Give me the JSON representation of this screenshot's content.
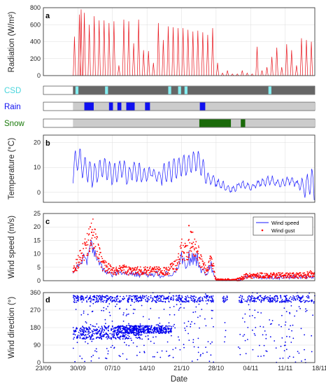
{
  "colors": {
    "radiation": "#e8141c",
    "temperature": "#1a1aff",
    "wind_speed": "#1a1aff",
    "wind_gust": "#ff0000",
    "wind_direction": "#0000ee",
    "bar_dark": "#666666",
    "bar_light": "#cccccc",
    "csd": "#86f0f3",
    "rain": "#1010f0",
    "snow": "#1a6a0a",
    "csd_label": "#4ad5dc",
    "rain_label": "#1010f0",
    "snow_label": "#1a7a0a"
  },
  "chart_data": [
    {
      "type": "line",
      "panel": "a",
      "ylabel": "Radiation (W/m²)",
      "ylim": [
        0,
        800
      ],
      "yticks": [
        0,
        200,
        400,
        600,
        800
      ],
      "xlim": [
        0,
        55
      ],
      "grid": true,
      "days": [
        {
          "day": 6.3,
          "peak": 460
        },
        {
          "day": 7.3,
          "peak": 720
        },
        {
          "day": 7.65,
          "peak": 780
        },
        {
          "day": 8.3,
          "peak": 740
        },
        {
          "day": 9.3,
          "peak": 600
        },
        {
          "day": 10.3,
          "peak": 700
        },
        {
          "day": 11.3,
          "peak": 650
        },
        {
          "day": 12.3,
          "peak": 650
        },
        {
          "day": 13.3,
          "peak": 620
        },
        {
          "day": 14.3,
          "peak": 640
        },
        {
          "day": 15.3,
          "peak": 120
        },
        {
          "day": 16.3,
          "peak": 660
        },
        {
          "day": 17.3,
          "peak": 640
        },
        {
          "day": 18.3,
          "peak": 380
        },
        {
          "day": 19.3,
          "peak": 660
        },
        {
          "day": 20.3,
          "peak": 300
        },
        {
          "day": 21.3,
          "peak": 290
        },
        {
          "day": 22.3,
          "peak": 150
        },
        {
          "day": 23.3,
          "peak": 620
        },
        {
          "day": 24.3,
          "peak": 420
        },
        {
          "day": 25.3,
          "peak": 580
        },
        {
          "day": 26.3,
          "peak": 570
        },
        {
          "day": 27.3,
          "peak": 560
        },
        {
          "day": 28.3,
          "peak": 560
        },
        {
          "day": 29.3,
          "peak": 540
        },
        {
          "day": 30.3,
          "peak": 520
        },
        {
          "day": 31.3,
          "peak": 530
        },
        {
          "day": 32.3,
          "peak": 510
        },
        {
          "day": 33.3,
          "peak": 480
        },
        {
          "day": 34.3,
          "peak": 560
        },
        {
          "day": 35.3,
          "peak": 150
        },
        {
          "day": 36.3,
          "peak": 30
        },
        {
          "day": 37.3,
          "peak": 60
        },
        {
          "day": 38.3,
          "peak": 20
        },
        {
          "day": 39.3,
          "peak": 20
        },
        {
          "day": 40.3,
          "peak": 60
        },
        {
          "day": 41.3,
          "peak": 30
        },
        {
          "day": 42.3,
          "peak": 20
        },
        {
          "day": 43.3,
          "peak": 340
        },
        {
          "day": 44.3,
          "peak": 60
        },
        {
          "day": 45.3,
          "peak": 100
        },
        {
          "day": 46.3,
          "peak": 220
        },
        {
          "day": 47.3,
          "peak": 330
        },
        {
          "day": 48.3,
          "peak": 100
        },
        {
          "day": 49.3,
          "peak": 370
        },
        {
          "day": 50.3,
          "peak": 300
        },
        {
          "day": 51.3,
          "peak": 120
        },
        {
          "day": 52.3,
          "peak": 440
        },
        {
          "day": 53.3,
          "peak": 420
        },
        {
          "day": 54.3,
          "peak": 400
        }
      ]
    },
    {
      "type": "bar",
      "panel": "CSD",
      "label": "CSD",
      "xlim": [
        0,
        55
      ],
      "data_range": [
        6,
        55
      ],
      "events": [
        [
          6.5,
          7.1
        ],
        [
          12.5,
          13.1
        ],
        [
          25.3,
          25.9
        ],
        [
          27.3,
          27.9
        ],
        [
          28.6,
          29.2
        ],
        [
          45.6,
          46.2
        ]
      ]
    },
    {
      "type": "bar",
      "panel": "Rain",
      "label": "Rain",
      "xlim": [
        0,
        55
      ],
      "data_range": [
        6,
        55
      ],
      "events": [
        [
          8.3,
          10.2
        ],
        [
          13.3,
          14.1
        ],
        [
          15.0,
          15.8
        ],
        [
          16.8,
          18.5
        ],
        [
          20.6,
          21.6
        ],
        [
          31.7,
          32.8
        ]
      ]
    },
    {
      "type": "bar",
      "panel": "Snow",
      "label": "Snow",
      "xlim": [
        0,
        55
      ],
      "data_range": [
        6,
        55
      ],
      "events": [
        [
          31.6,
          38.0
        ],
        [
          40.0,
          40.9
        ]
      ]
    },
    {
      "type": "line",
      "panel": "b",
      "ylabel": "Temperature (°C)",
      "ylim": [
        -4,
        23
      ],
      "yticks": [
        0,
        10,
        20
      ],
      "xlim": [
        0,
        55
      ],
      "grid": true,
      "series": [
        {
          "name": "Temperature",
          "x": [
            6,
            7,
            8,
            9,
            10,
            11,
            12,
            13,
            14,
            15,
            16,
            17,
            18,
            19,
            20,
            21,
            22,
            23,
            24,
            25,
            26,
            27,
            28,
            29,
            30,
            31,
            32,
            33,
            34,
            35,
            36,
            37,
            38,
            39,
            40,
            41,
            42,
            43,
            44,
            45,
            46,
            47,
            48,
            49,
            50,
            51,
            52,
            53,
            54,
            55
          ],
          "mean": [
            9,
            14,
            10,
            9,
            7,
            8,
            10,
            9,
            7,
            8,
            10,
            6,
            9,
            8,
            7,
            7,
            8,
            6,
            7,
            8,
            9,
            10,
            11,
            11,
            12,
            13,
            11,
            6,
            5,
            4,
            3,
            2,
            1,
            2,
            3,
            3,
            2,
            3,
            4,
            4,
            5,
            4,
            3,
            4,
            5,
            4,
            3,
            2,
            4,
            3
          ],
          "amp": [
            5,
            5,
            4,
            5,
            4,
            4,
            4,
            4,
            4,
            4,
            4,
            3,
            4,
            4,
            2,
            2,
            2,
            2,
            4,
            4,
            5,
            4,
            4,
            4,
            4,
            4,
            4,
            2,
            2,
            1.5,
            1.5,
            1,
            1,
            1,
            1,
            1,
            1,
            1,
            1.5,
            1.5,
            1.5,
            1,
            1.5,
            1.5,
            1.5,
            1,
            3,
            4,
            6,
            3
          ]
        }
      ]
    },
    {
      "type": "scatter",
      "panel": "c",
      "ylabel": "Wind speed (m/s)",
      "ylim": [
        0,
        25
      ],
      "yticks": [
        0,
        5,
        10,
        15,
        20,
        25
      ],
      "xlim": [
        0,
        55
      ],
      "grid": true,
      "legend": "top-right",
      "series": [
        {
          "name": "Wind speed",
          "style": "line",
          "x": [
            6,
            7,
            8,
            9,
            10,
            11,
            12,
            13,
            14,
            15,
            16,
            17,
            18,
            19,
            20,
            21,
            22,
            23,
            24,
            25,
            26,
            27,
            28,
            29,
            30,
            31,
            32,
            33,
            34,
            35,
            36,
            37,
            38,
            39,
            40,
            41,
            42,
            43,
            44,
            45,
            46,
            47,
            48,
            49,
            50,
            51,
            52,
            53,
            54,
            55
          ],
          "base": [
            2,
            4,
            6,
            8,
            10,
            7,
            3,
            2,
            2,
            2,
            3,
            2,
            2,
            2,
            2,
            2,
            2,
            2,
            1.5,
            2,
            2,
            3,
            7,
            6,
            8,
            7,
            4,
            2,
            5,
            0,
            0,
            0,
            0,
            0,
            0,
            1,
            1,
            1,
            1,
            1,
            1,
            1,
            1,
            1,
            1,
            1,
            1,
            1,
            1,
            1
          ]
        },
        {
          "name": "Wind gust",
          "style": "points",
          "x": [
            6,
            7,
            8,
            9,
            10,
            11,
            12,
            13,
            14,
            15,
            16,
            17,
            18,
            19,
            20,
            21,
            22,
            23,
            24,
            25,
            26,
            27,
            28,
            29,
            30,
            31,
            32,
            33,
            34,
            35,
            36,
            37,
            38,
            39,
            40,
            41,
            42,
            43,
            44,
            45,
            46,
            47,
            48,
            49,
            50,
            51,
            52,
            53,
            54,
            55
          ],
          "base": [
            3,
            6,
            9,
            12,
            15,
            10,
            5,
            4,
            3,
            3,
            4,
            3,
            3,
            3,
            3,
            3,
            3,
            3,
            3,
            3,
            4,
            5,
            10,
            9,
            13,
            10,
            6,
            3,
            7,
            0,
            0,
            0,
            0,
            0,
            0.5,
            1.5,
            1.5,
            1.5,
            1.5,
            1.5,
            1.5,
            1.5,
            1.5,
            1.5,
            1.5,
            1.5,
            1.5,
            1.5,
            2,
            2
          ],
          "peaks": [
            [
              9.5,
              20
            ],
            [
              9.8,
              18
            ],
            [
              29.5,
              20.5
            ],
            [
              30,
              18
            ]
          ]
        }
      ]
    },
    {
      "type": "scatter",
      "panel": "d",
      "ylabel": "Wind direction (°)",
      "ylim": [
        0,
        360
      ],
      "yticks": [
        0,
        90,
        180,
        270,
        360
      ],
      "xlim": [
        0,
        55
      ],
      "grid": true,
      "x_range": [
        6,
        55
      ],
      "gaps": [
        [
          34.5,
          36.3
        ],
        [
          37.3,
          39.5
        ]
      ],
      "clusters": [
        {
          "x": [
            6,
            55
          ],
          "y": [
            310,
            345
          ],
          "density": "high"
        },
        {
          "x": [
            6,
            55
          ],
          "y": [
            0,
            360
          ],
          "density": "medium"
        },
        {
          "x": [
            6,
            20
          ],
          "y": [
            120,
            190
          ],
          "density": "medium"
        },
        {
          "x": [
            15,
            26
          ],
          "y": [
            150,
            190
          ],
          "density": "medium"
        }
      ],
      "xlabel": "Date",
      "xticks": [
        "23/09",
        "30/09",
        "07/10",
        "14/10",
        "21/10",
        "28/10",
        "04/11",
        "11/11",
        "18/11"
      ],
      "xtick_days": [
        0,
        7,
        14,
        21,
        28,
        35,
        42,
        49,
        56
      ]
    }
  ]
}
